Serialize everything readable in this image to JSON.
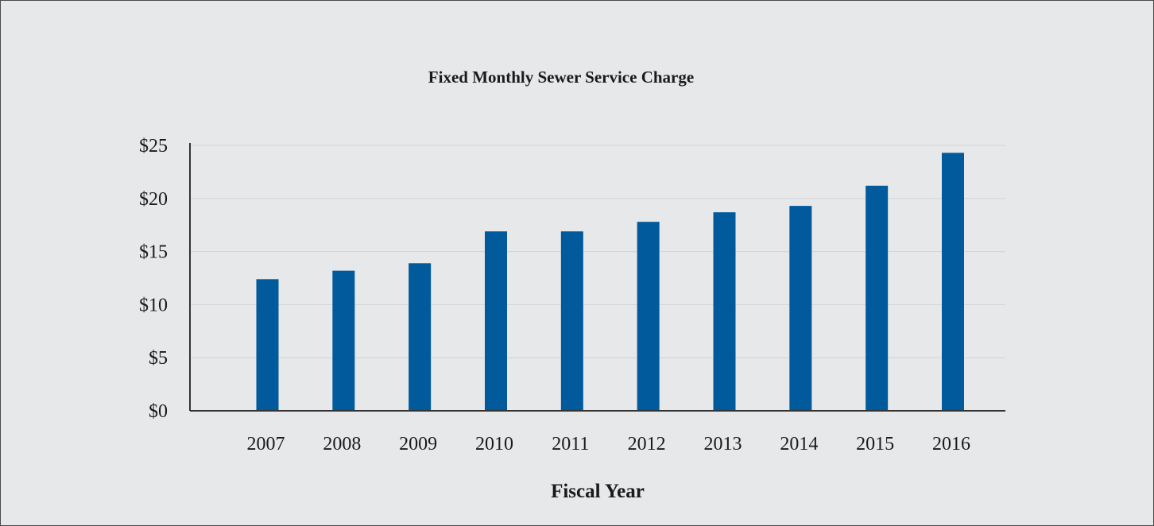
{
  "chart_data": {
    "type": "bar",
    "title": "Fixed Monthly Sewer Service Charge",
    "xlabel": "Fiscal Year",
    "ylabel": "",
    "categories": [
      "2007",
      "2008",
      "2009",
      "2010",
      "2011",
      "2012",
      "2013",
      "2014",
      "2015",
      "2016"
    ],
    "values": [
      12.4,
      13.2,
      13.9,
      16.9,
      16.9,
      17.8,
      18.7,
      19.3,
      21.2,
      24.3
    ],
    "ylim": [
      0,
      25
    ],
    "yticks": [
      0,
      5,
      10,
      15,
      20,
      25
    ],
    "ytick_labels": [
      "$0",
      "$5",
      "$10",
      "$15",
      "$20",
      "$25"
    ],
    "grid": true,
    "legend": "none",
    "colors": {
      "bar": "#005a9c",
      "grid": "#d2d3d5",
      "axis": "#333333",
      "background": "#e7e8e9"
    }
  }
}
